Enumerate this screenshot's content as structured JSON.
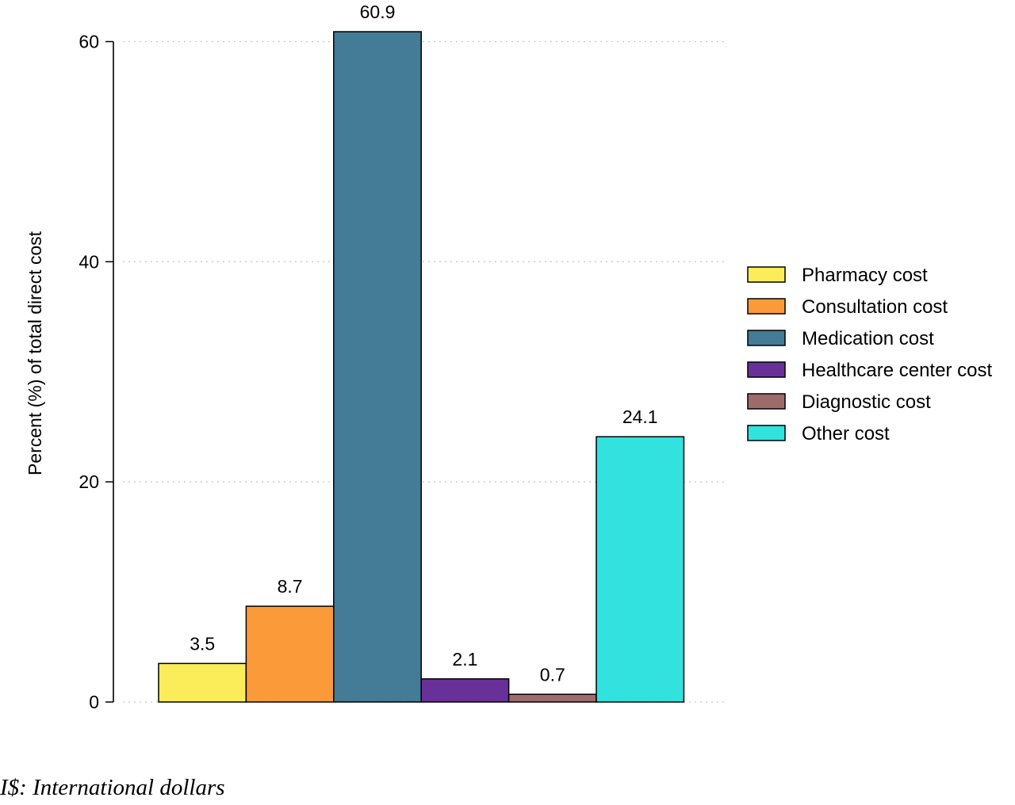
{
  "chart_data": {
    "type": "bar",
    "categories": [
      "Pharmacy cost",
      "Consultation cost",
      "Medication cost",
      "Healthcare center cost",
      "Diagnostic cost",
      "Other cost"
    ],
    "values": [
      3.5,
      8.7,
      60.9,
      2.1,
      0.7,
      24.1
    ],
    "value_labels": [
      "3.5",
      "8.7",
      "60.9",
      "2.1",
      "0.7",
      "24.1"
    ],
    "colors": [
      "#fbed5a",
      "#fb9a38",
      "#447b96",
      "#6a309a",
      "#9e6b6a",
      "#31e2df"
    ],
    "ylabel": "Percent (%) of total direct cost",
    "xlabel": "",
    "ylim": [
      0,
      60.9
    ],
    "yticks": [
      0,
      20,
      40,
      60
    ],
    "ytick_labels": [
      "0",
      "20",
      "40",
      "60"
    ],
    "grid": "horizontal-dotted",
    "legend": {
      "position": "right",
      "entries": [
        "Pharmacy cost",
        "Consultation cost",
        "Medication cost",
        "Healthcare center cost",
        "Diagnostic cost",
        "Other cost"
      ]
    }
  },
  "footnote": "I$: International dollars"
}
